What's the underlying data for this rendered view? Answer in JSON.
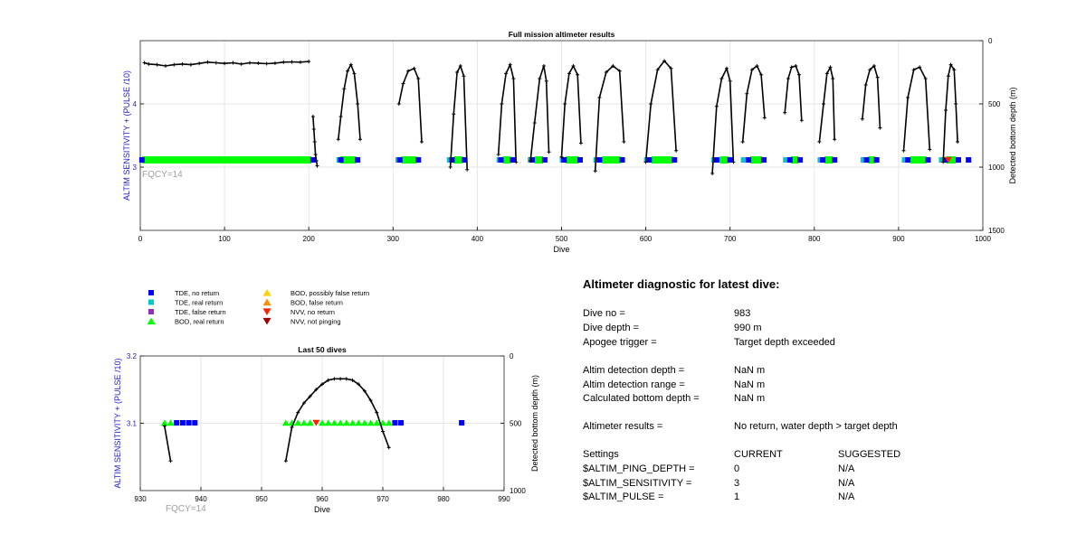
{
  "colors": {
    "axis": "#000000",
    "left_axis_label": "#1d1dc8",
    "annotation_gray": "#a0a0a0",
    "depth_line": "#000000",
    "tde_no_return": "#0000ff",
    "tde_real_return": "#00c8c8",
    "tde_false_return": "#9030c0",
    "bod_real_return": "#00ff00",
    "bod_possibly_false": "#ffd000",
    "bod_false_return": "#ff9000",
    "nvv_no_return": "#ff2000",
    "nvv_not_pinging": "#a00000"
  },
  "legend": [
    {
      "label": "TDE, no return",
      "marker": "square",
      "color": "#0000ff"
    },
    {
      "label": "TDE, real return",
      "marker": "square",
      "color": "#00c8c8"
    },
    {
      "label": "TDE, false return",
      "marker": "square",
      "color": "#9030c0"
    },
    {
      "label": "BOD, real return",
      "marker": "triangle-up",
      "color": "#00ff00"
    },
    {
      "label": "BOD, possibly false return",
      "marker": "triangle-up",
      "color": "#ffd000"
    },
    {
      "label": "BOD, false return",
      "marker": "triangle-up",
      "color": "#ff9000"
    },
    {
      "label": "NVV, no return",
      "marker": "triangle-down",
      "color": "#ff2000"
    },
    {
      "label": "NVV, not pinging",
      "marker": "triangle-down",
      "color": "#a00000"
    }
  ],
  "chart_data": [
    {
      "type": "scatter",
      "title": "Full mission altimeter results",
      "xlabel": "Dive",
      "ylabel": "ALTIM SENSITIVITY + (PULSE /10)",
      "y2label": "Detected bottom depth (m)",
      "xlim": [
        0,
        1000
      ],
      "ylim": [
        2,
        5
      ],
      "y2lim": [
        1500,
        0
      ],
      "xticks": [
        0,
        100,
        200,
        300,
        400,
        500,
        600,
        700,
        800,
        900,
        1000
      ],
      "yticks": [
        3,
        4
      ],
      "y2ticks": [
        0,
        500,
        1000,
        1500
      ],
      "grid": true,
      "annotation": "FQCY=14",
      "depth_segments": [
        {
          "x": [
            5,
            10,
            20,
            30,
            40,
            50,
            60,
            70,
            80,
            90,
            100,
            110,
            120,
            130,
            140,
            150,
            160,
            170,
            180,
            190,
            200
          ],
          "y": [
            175,
            185,
            190,
            200,
            190,
            185,
            190,
            180,
            170,
            175,
            180,
            175,
            185,
            175,
            178,
            182,
            178,
            170,
            168,
            170,
            165
          ]
        },
        {
          "x": [
            205,
            206,
            207,
            208,
            209,
            210
          ],
          "y": [
            600,
            700,
            800,
            900,
            950,
            990
          ]
        },
        {
          "x": [
            235,
            238,
            242,
            246,
            250,
            254,
            258,
            261
          ],
          "y": [
            780,
            600,
            380,
            240,
            190,
            260,
            500,
            780
          ]
        },
        {
          "x": [
            307,
            312,
            318,
            325,
            330,
            334
          ],
          "y": [
            500,
            340,
            240,
            220,
            300,
            800
          ]
        },
        {
          "x": [
            368,
            372,
            376,
            380,
            384,
            388
          ],
          "y": [
            1000,
            580,
            250,
            200,
            280,
            1020
          ]
        },
        {
          "x": [
            425,
            429,
            434,
            439,
            443,
            446
          ],
          "y": [
            900,
            500,
            260,
            190,
            300,
            960
          ]
        },
        {
          "x": [
            463,
            468,
            474,
            479,
            482,
            485
          ],
          "y": [
            950,
            650,
            300,
            200,
            320,
            880
          ]
        },
        {
          "x": [
            500,
            504,
            509,
            514,
            519,
            523
          ],
          "y": [
            920,
            500,
            260,
            200,
            270,
            810
          ]
        },
        {
          "x": [
            540,
            545,
            553,
            561,
            569,
            574
          ],
          "y": [
            1030,
            450,
            250,
            200,
            240,
            800
          ]
        },
        {
          "x": [
            600,
            606,
            614,
            622,
            630,
            636
          ],
          "y": [
            960,
            500,
            230,
            160,
            220,
            870
          ]
        },
        {
          "x": [
            679,
            684,
            690,
            696,
            700,
            704
          ],
          "y": [
            1050,
            520,
            300,
            220,
            320,
            960
          ]
        },
        {
          "x": [
            715,
            720,
            726,
            732,
            737,
            741
          ],
          "y": [
            800,
            420,
            230,
            200,
            270,
            610
          ]
        },
        {
          "x": [
            765,
            769,
            773,
            778,
            782,
            785
          ],
          "y": [
            570,
            300,
            210,
            200,
            270,
            630
          ]
        },
        {
          "x": [
            806,
            811,
            815,
            819,
            822,
            824
          ],
          "y": [
            800,
            500,
            260,
            210,
            300,
            780
          ]
        },
        {
          "x": [
            857,
            861,
            866,
            871,
            875,
            878
          ],
          "y": [
            620,
            350,
            230,
            200,
            290,
            690
          ]
        },
        {
          "x": [
            906,
            911,
            918,
            925,
            932,
            937
          ],
          "y": [
            870,
            450,
            230,
            210,
            300,
            860
          ]
        },
        {
          "x": [
            953,
            956,
            959,
            962,
            966,
            968,
            970
          ],
          "y": [
            960,
            550,
            280,
            190,
            230,
            500,
            800
          ]
        }
      ],
      "tde_no_return_dives": [
        2,
        205,
        238,
        258,
        308,
        330,
        370,
        385,
        428,
        442,
        465,
        480,
        503,
        522,
        545,
        572,
        604,
        634,
        684,
        700,
        722,
        740,
        771,
        783,
        810,
        824,
        862,
        874,
        911,
        935,
        955,
        971,
        983
      ],
      "bod_real_return_ranges": [
        [
          2,
          203
        ],
        [
          237,
          256
        ],
        [
          310,
          328
        ],
        [
          372,
          382
        ],
        [
          430,
          440
        ],
        [
          468,
          478
        ],
        [
          505,
          520
        ],
        [
          548,
          570
        ],
        [
          607,
          632
        ],
        [
          688,
          698
        ],
        [
          724,
          738
        ],
        [
          772,
          781
        ],
        [
          812,
          822
        ],
        [
          864,
          872
        ],
        [
          914,
          933
        ],
        [
          957,
          968
        ]
      ],
      "tde_real_return_ranges": [
        [
          2,
          2
        ],
        [
          235,
          240
        ],
        [
          305,
          310
        ],
        [
          366,
          371
        ],
        [
          425,
          430
        ],
        [
          462,
          467
        ],
        [
          500,
          505
        ],
        [
          540,
          545
        ],
        [
          600,
          606
        ],
        [
          680,
          686
        ],
        [
          715,
          720
        ],
        [
          765,
          770
        ],
        [
          806,
          811
        ],
        [
          857,
          862
        ],
        [
          906,
          911
        ],
        [
          950,
          956
        ]
      ],
      "nvv_no_return_dives": [
        959
      ]
    },
    {
      "type": "scatter",
      "title": "Last 50 dives",
      "xlabel": "Dive",
      "ylabel": "ALTIM SENSITIVITY + (PULSE /10)",
      "y2label": "Detected bottom depth (m)",
      "xlim": [
        930,
        990
      ],
      "ylim": [
        3,
        3.2
      ],
      "y2lim": [
        1000,
        0
      ],
      "xticks": [
        930,
        940,
        950,
        960,
        970,
        980,
        990
      ],
      "yticks": [
        3.1,
        3.2
      ],
      "y2ticks": [
        0,
        500,
        1000
      ],
      "grid": true,
      "annotation": "FQCY=14",
      "depth_segments": [
        {
          "x": [
            934,
            935
          ],
          "y": [
            520,
            780
          ]
        },
        {
          "x": [
            954,
            955,
            956,
            957,
            958,
            959,
            960,
            961,
            962,
            963,
            964,
            965,
            966,
            967,
            968,
            969,
            970,
            971
          ],
          "y": [
            780,
            530,
            420,
            350,
            300,
            250,
            210,
            180,
            170,
            170,
            170,
            180,
            210,
            260,
            330,
            420,
            560,
            680
          ]
        }
      ],
      "bod_real_return": [
        934,
        935,
        954,
        955,
        956,
        957,
        958,
        960,
        961,
        962,
        963,
        964,
        965,
        966,
        967,
        968,
        969,
        970,
        971
      ],
      "tde_no_return": [
        936,
        937,
        938,
        939,
        972,
        973,
        983
      ],
      "nvv_no_return": [
        959
      ]
    }
  ],
  "diagnostic": {
    "title": "Altimeter diagnostic for latest dive:",
    "rows": [
      {
        "label": "Dive no =",
        "value": "983"
      },
      {
        "label": "Dive depth =",
        "value": "990 m"
      },
      {
        "label": "Apogee trigger =",
        "value": "Target depth exceeded"
      },
      {
        "label": "Altim detection depth =",
        "value": "NaN m"
      },
      {
        "label": "Altim detection range =",
        "value": "NaN m"
      },
      {
        "label": "Calculated bottom depth =",
        "value": "NaN m"
      },
      {
        "label": "Altimeter results =",
        "value": "No return, water depth > target depth"
      }
    ],
    "settings_header": {
      "label": "Settings",
      "current": "CURRENT",
      "suggested": "SUGGESTED"
    },
    "settings": [
      {
        "label": "$ALTIM_PING_DEPTH =",
        "current": "0",
        "suggested": "N/A"
      },
      {
        "label": "$ALTIM_SENSITIVITY =",
        "current": "3",
        "suggested": "N/A"
      },
      {
        "label": "$ALTIM_PULSE =",
        "current": "1",
        "suggested": "N/A"
      }
    ]
  }
}
